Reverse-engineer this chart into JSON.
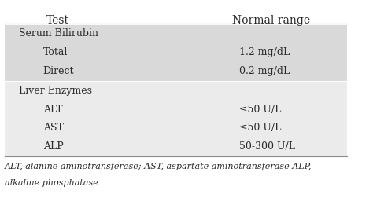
{
  "header": [
    "Test",
    "Normal range"
  ],
  "sections": [
    {
      "group": "Serum Bilirubin",
      "rows": [
        [
          "Total",
          "1.2 mg/dL"
        ],
        [
          "Direct",
          "0.2 mg/dL"
        ]
      ],
      "bg_color": "#d9d9d9"
    },
    {
      "group": "Liver Enzymes",
      "rows": [
        [
          "ALT",
          "≤50 U/L"
        ],
        [
          "AST",
          "≤50 U/L"
        ],
        [
          "ALP",
          "50-300 U/L"
        ]
      ],
      "bg_color": "#ebebeb"
    }
  ],
  "footer_line1": "ALT, alanine aminotransferase; AST, aspartate aminotransferase ALP,",
  "footer_line2": "alkaline phosphatase",
  "bg_color_main": "#ffffff",
  "text_color": "#2b2b2b",
  "header_bg": "#ffffff",
  "font_size": 9,
  "header_font_size": 10,
  "footer_font_size": 8
}
